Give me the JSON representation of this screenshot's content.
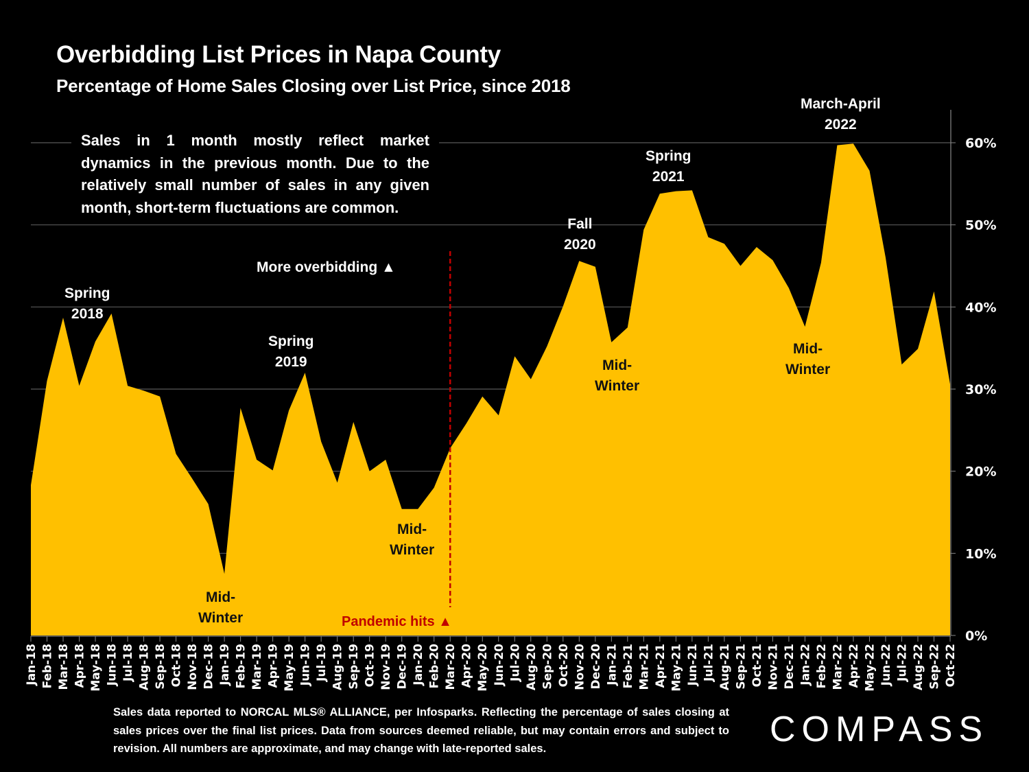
{
  "header": {
    "title": "Overbidding List Prices in Napa County",
    "subtitle": "Percentage of Home Sales Closing over List Price, since 2018"
  },
  "note": "Sales in 1 month mostly reflect market dynamics in the previous month. Due to the relatively small number of sales in any given month, short-term fluctuations are common.",
  "annotations": {
    "spring_2018": [
      "Spring",
      "2018"
    ],
    "mid_winter_2019": [
      "Mid-",
      "Winter"
    ],
    "spring_2019": [
      "Spring",
      "2019"
    ],
    "mid_winter_2020": [
      "Mid-",
      "Winter"
    ],
    "more_overbidding": "More overbidding ▲",
    "pandemic_hits": "Pandemic hits ▲",
    "fall_2020": [
      "Fall",
      "2020"
    ],
    "mid_winter_2021": [
      "Mid-",
      "Winter"
    ],
    "spring_2021": [
      "Spring",
      "2021"
    ],
    "mid_winter_2022": [
      "Mid-",
      "Winter"
    ],
    "march_april_2022": [
      "March-April",
      "2022"
    ]
  },
  "footer": "Sales data reported to NORCAL MLS® ALLIANCE, per Infosparks. Reflecting the percentage of sales closing at sales prices over the final list prices. Data from sources deemed reliable, but may contain errors and subject to revision. All numbers are approximate, and may change with late-reported sales.",
  "logo": "COMPASS",
  "colors": {
    "background": "#000000",
    "area_fill": "#FFC000",
    "pandemic_line": "#C00000",
    "gridline": "#595959",
    "text": "#FFFFFF"
  },
  "chart_data": {
    "type": "area",
    "title": "Overbidding List Prices in Napa County",
    "subtitle": "Percentage of Home Sales Closing over List Price, since 2018",
    "xlabel": "",
    "ylabel": "",
    "y_axis_side": "right",
    "ylim": [
      0,
      60
    ],
    "y_ticks": [
      0,
      10,
      20,
      30,
      40,
      50,
      60
    ],
    "y_tick_labels": [
      "0%",
      "10%",
      "20%",
      "30%",
      "40%",
      "50%",
      "60%"
    ],
    "grid": true,
    "categories": [
      "Jan-18",
      "Feb-18",
      "Mar-18",
      "Apr-18",
      "May-18",
      "Jun-18",
      "Jul-18",
      "Aug-18",
      "Sep-18",
      "Oct-18",
      "Nov-18",
      "Dec-18",
      "Jan-19",
      "Feb-19",
      "Mar-19",
      "Apr-19",
      "May-19",
      "Jun-19",
      "Jul-19",
      "Aug-19",
      "Sep-19",
      "Oct-19",
      "Nov-19",
      "Dec-19",
      "Jan-20",
      "Feb-20",
      "Mar-20",
      "Apr-20",
      "May-20",
      "Jun-20",
      "Jul-20",
      "Aug-20",
      "Sep-20",
      "Oct-20",
      "Nov-20",
      "Dec-20",
      "Jan-21",
      "Feb-21",
      "Mar-21",
      "Apr-21",
      "May-21",
      "Jun-21",
      "Jul-21",
      "Aug-21",
      "Sep-21",
      "Oct-21",
      "Nov-21",
      "Dec-21",
      "Jan-22",
      "Feb-22",
      "Mar-22",
      "Apr-22",
      "May-22",
      "Jun-22",
      "Jul-22",
      "Aug-22",
      "Sep-22",
      "Oct-22"
    ],
    "series": [
      {
        "name": "% of sales over list price",
        "values": [
          18.3,
          31.0,
          38.7,
          30.4,
          35.8,
          39.2,
          30.4,
          29.8,
          29.1,
          22.1,
          19.1,
          16.0,
          7.5,
          27.7,
          21.4,
          20.1,
          27.4,
          32.0,
          23.6,
          18.6,
          26.0,
          20.0,
          21.4,
          15.4,
          15.4,
          18.0,
          22.8,
          25.8,
          29.1,
          26.8,
          34.0,
          31.2,
          35.2,
          40.1,
          45.6,
          44.9,
          35.7,
          37.5,
          49.4,
          53.8,
          54.1,
          54.2,
          48.5,
          47.7,
          45.0,
          47.3,
          45.7,
          42.3,
          37.6,
          45.4,
          59.7,
          59.9,
          56.6,
          46.0,
          33.0,
          34.9,
          41.9,
          30.6
        ]
      }
    ],
    "reference_lines": [
      {
        "category": "Mar-20",
        "label": "Pandemic hits",
        "style": "dashed",
        "color": "#C00000"
      }
    ],
    "annotations": [
      "Spring 2018",
      "Mid-Winter",
      "Spring 2019",
      "Mid-Winter",
      "More overbidding ▲",
      "Pandemic hits ▲",
      "Fall 2020",
      "Mid-Winter",
      "Spring 2021",
      "Mid-Winter",
      "March-April 2022"
    ]
  }
}
